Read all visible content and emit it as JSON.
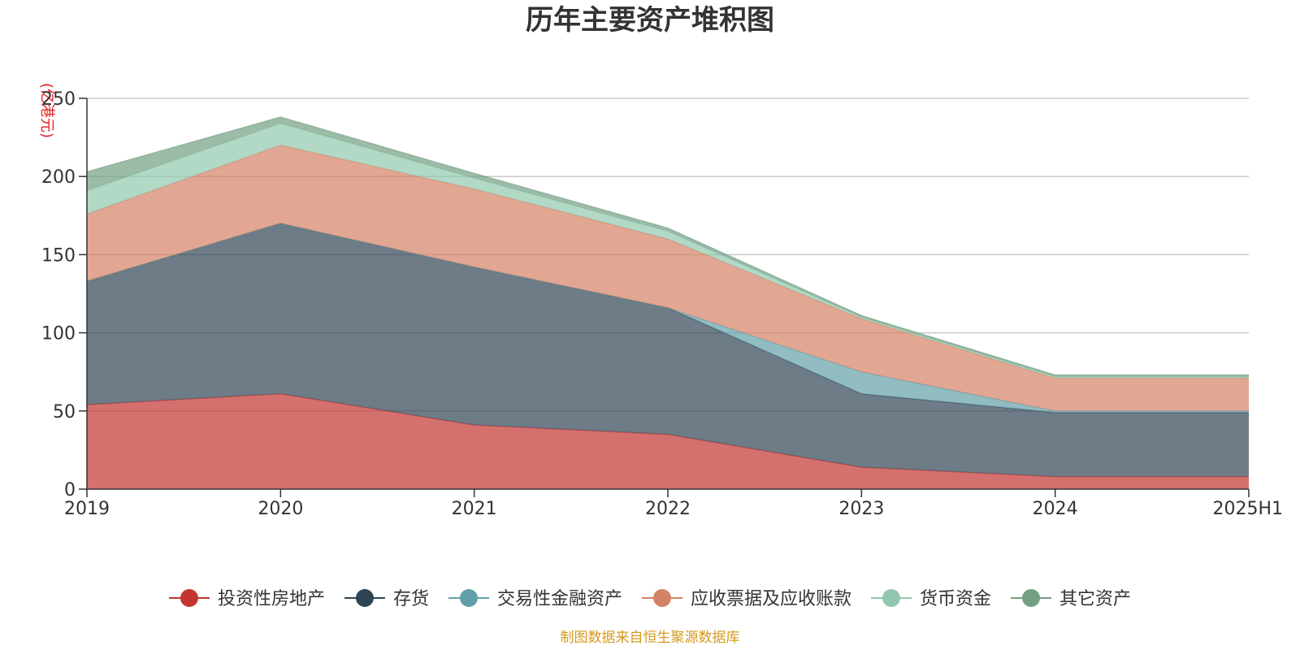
{
  "chart_data": {
    "type": "area",
    "stacked": true,
    "title": "历年主要资产堆积图",
    "ylabel": "(亿港元)",
    "xlabel": "",
    "categories": [
      "2019",
      "2020",
      "2021",
      "2022",
      "2023",
      "2024",
      "2025H1"
    ],
    "ylim": [
      0,
      250
    ],
    "yticks": [
      "0",
      "50",
      "100",
      "150",
      "200",
      "250"
    ],
    "grid": true,
    "legend_position": "bottom",
    "series": [
      {
        "name": "投资性房地产",
        "color": "#c23531",
        "values": [
          54,
          61,
          41,
          35,
          14,
          8,
          8
        ]
      },
      {
        "name": "存货",
        "color": "#2f4554",
        "values": [
          79,
          109,
          101,
          81,
          47,
          41,
          41
        ]
      },
      {
        "name": "交易性金融资产",
        "color": "#61a0a8",
        "values": [
          0,
          0,
          0,
          0,
          14,
          1,
          1
        ]
      },
      {
        "name": "应收票据及应收账款",
        "color": "#d48265",
        "values": [
          43,
          50,
          50,
          44,
          34,
          21,
          21
        ]
      },
      {
        "name": "货币资金",
        "color": "#91c7ae",
        "values": [
          15,
          14,
          7,
          5,
          1,
          1,
          1
        ]
      },
      {
        "name": "其它资产",
        "color": "#749f83",
        "values": [
          12,
          4,
          3,
          2,
          1,
          1,
          1
        ]
      }
    ],
    "source_note": "制图数据来自恒生聚源数据库"
  }
}
